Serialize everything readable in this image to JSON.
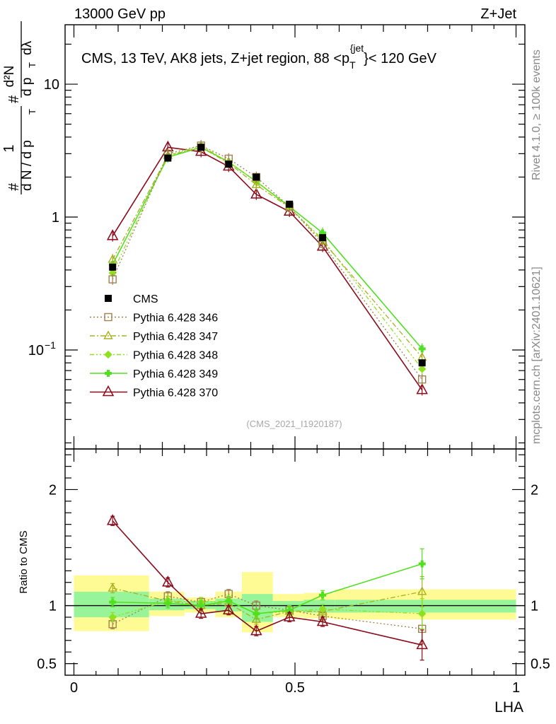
{
  "header": {
    "left": "13000 GeV pp",
    "right": "Z+Jet"
  },
  "side_labels": {
    "rivet": "Rivet 4.1.0, ≥ 100k events",
    "mcplots": "mcplots.cern.ch [arXiv:2401.10621]"
  },
  "colors": {
    "cms": "#000000",
    "p346": "#a0804f",
    "p347": "#a8b020",
    "p348": "#90e020",
    "p349": "#50e020",
    "p370": "#8b0a1a",
    "band_stat": "#98f498",
    "band_total": "#fffb94"
  },
  "chart_data": [
    {
      "type": "line",
      "title": "CMS, 13 TeV, AK8 jets, Z+jet region, 88 <p_T^{jet}< 120 GeV",
      "title_parts": {
        "main": "CMS, 13 TeV, AK8 jets, Z+jet region, 88 <p",
        "sub": "T",
        "sup": "{jet",
        "end": "}< 120 GeV"
      },
      "ylabel": "1/(dN/dp_T) d²N/(dp_T dλ)",
      "ylabel_parts": {
        "hash": "#",
        "one": "1",
        "dN": "d N / d p",
        "T": "T",
        "d2N": "d²N",
        "dpT": "d p",
        "dlam": "dλ"
      },
      "yscale": "log",
      "ylim": [
        0.018,
        28
      ],
      "xlim": [
        -0.02,
        1.02
      ],
      "y_ticks": [
        {
          "value": 10,
          "label": "10"
        },
        {
          "value": 1,
          "label": "1"
        },
        {
          "value": 0.1,
          "label": "10",
          "sup": "−1"
        }
      ],
      "watermark": "(CMS_2021_I1920187)",
      "x": [
        0.0875,
        0.2125,
        0.2875,
        0.35,
        0.4125,
        0.4875,
        0.5625,
        0.7875
      ],
      "series": [
        {
          "name": "CMS",
          "key": "cms",
          "values": [
            0.42,
            2.78,
            3.35,
            2.5,
            2.0,
            1.25,
            0.7,
            0.08
          ]
        },
        {
          "name": "Pythia 6.428 346",
          "key": "p346",
          "values": [
            0.34,
            3.0,
            3.45,
            2.75,
            2.0,
            1.2,
            0.63,
            0.06
          ]
        },
        {
          "name": "Pythia 6.428 347",
          "key": "p347",
          "values": [
            0.48,
            2.9,
            3.35,
            2.55,
            1.75,
            1.18,
            0.66,
            0.088
          ]
        },
        {
          "name": "Pythia 6.428 348",
          "key": "p348",
          "values": [
            0.38,
            2.9,
            3.45,
            2.6,
            1.85,
            1.18,
            0.68,
            0.072
          ]
        },
        {
          "name": "Pythia 6.428 349",
          "key": "p349",
          "values": [
            0.44,
            2.82,
            3.35,
            2.6,
            1.85,
            1.2,
            0.76,
            0.102
          ]
        },
        {
          "name": "Pythia 6.428 370",
          "key": "p370",
          "values": [
            0.72,
            3.35,
            3.1,
            2.4,
            1.48,
            1.1,
            0.6,
            0.05
          ]
        }
      ],
      "legend": [
        {
          "label": "CMS",
          "key": "cms"
        },
        {
          "label": "Pythia 6.428 346",
          "key": "p346"
        },
        {
          "label": "Pythia 6.428 347",
          "key": "p347"
        },
        {
          "label": "Pythia 6.428 348",
          "key": "p348"
        },
        {
          "label": "Pythia 6.428 349",
          "key": "p349"
        },
        {
          "label": "Pythia 6.428 370",
          "key": "p370"
        }
      ]
    },
    {
      "type": "line",
      "ylabel": "Ratio to CMS",
      "xlabel": "LHA",
      "ylim": [
        0.4,
        2.35
      ],
      "xlim": [
        -0.02,
        1.02
      ],
      "reference_line": 1.0,
      "y_ticks": [
        {
          "value": 2,
          "label": "2"
        },
        {
          "value": 1,
          "label": "1"
        },
        {
          "value": 0.5,
          "label": "0.5"
        }
      ],
      "x_ticks": [
        {
          "value": 0,
          "label": "0"
        },
        {
          "value": 0.5,
          "label": "0.5"
        },
        {
          "value": 1,
          "label": "1"
        }
      ],
      "bins": [
        {
          "lo": 0.0,
          "hi": 0.17,
          "stat": [
            0.9,
            1.12
          ],
          "total": [
            0.78,
            1.26
          ]
        },
        {
          "lo": 0.17,
          "hi": 0.25,
          "stat": [
            0.96,
            1.06
          ],
          "total": [
            0.91,
            1.12
          ]
        },
        {
          "lo": 0.25,
          "hi": 0.32,
          "stat": [
            0.97,
            1.04
          ],
          "total": [
            0.94,
            1.07
          ]
        },
        {
          "lo": 0.32,
          "hi": 0.38,
          "stat": [
            0.95,
            1.06
          ],
          "total": [
            0.9,
            1.12
          ]
        },
        {
          "lo": 0.38,
          "hi": 0.45,
          "stat": [
            0.86,
            1.1
          ],
          "total": [
            0.77,
            1.29
          ]
        },
        {
          "lo": 0.45,
          "hi": 0.52,
          "stat": [
            0.95,
            1.04
          ],
          "total": [
            0.9,
            1.1
          ]
        },
        {
          "lo": 0.52,
          "hi": 0.59,
          "stat": [
            0.94,
            1.05
          ],
          "total": [
            0.89,
            1.11
          ]
        },
        {
          "lo": 0.59,
          "hi": 1.0,
          "stat": [
            0.94,
            1.05
          ],
          "total": [
            0.88,
            1.14
          ]
        }
      ],
      "series": [
        {
          "name": "Pythia 6.428 346",
          "key": "p346",
          "values": [
            0.84,
            1.08,
            1.03,
            1.1,
            1.0,
            0.96,
            0.91,
            0.8
          ]
        },
        {
          "name": "Pythia 6.428 347",
          "key": "p347",
          "values": [
            1.15,
            1.04,
            1.0,
            1.02,
            0.88,
            0.95,
            0.95,
            1.12
          ]
        },
        {
          "name": "Pythia 6.428 348",
          "key": "p348",
          "values": [
            0.9,
            1.04,
            1.03,
            1.04,
            0.93,
            0.95,
            0.97,
            0.93
          ]
        },
        {
          "name": "Pythia 6.428 349",
          "key": "p349",
          "values": [
            1.03,
            1.02,
            1.0,
            1.04,
            0.93,
            0.96,
            1.09,
            1.36
          ]
        },
        {
          "name": "Pythia 6.428 370",
          "key": "p370",
          "values": [
            1.73,
            1.2,
            0.93,
            0.96,
            0.78,
            0.9,
            0.86,
            0.66
          ]
        }
      ]
    }
  ]
}
